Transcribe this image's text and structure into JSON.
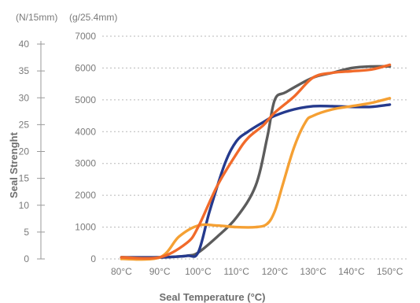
{
  "chart_data": {
    "type": "line",
    "xlabel": "Seal Temperature (°C)",
    "ylabel": "Seal Strenght",
    "left_axis": {
      "unit": "(N/15mm)",
      "ticks": [
        "0",
        "5",
        "10",
        "15",
        "20",
        "25",
        "30",
        "35",
        "40"
      ],
      "ylim": [
        0,
        40
      ]
    },
    "right_axis": {
      "unit": "(g/25.4mm)",
      "ticks": [
        "0",
        "1000",
        "2000",
        "3000",
        "4000",
        "5000",
        "6000",
        "7000"
      ],
      "ylim": [
        0,
        7000
      ]
    },
    "x_ticks": [
      {
        "label": "80°C",
        "value": 80
      },
      {
        "label": "90°C",
        "value": 90
      },
      {
        "label": "100°C",
        "value": 100
      },
      {
        "label": "110°C",
        "value": 110
      },
      {
        "label": "120°C",
        "value": 120
      },
      {
        "label": "130°C",
        "value": 130
      },
      {
        "label": "140°C",
        "value": 140
      },
      {
        "label": "150°C",
        "value": 150
      }
    ],
    "xlim": [
      75,
      155
    ],
    "grid": true,
    "legend": "none",
    "series": [
      {
        "color": "#5c5c5c",
        "x": [
          80,
          90,
          97,
          100,
          105,
          110,
          115,
          118,
          120,
          123,
          130,
          135,
          140,
          145,
          150
        ],
        "y": [
          50,
          50,
          100,
          200,
          700,
          1300,
          2300,
          3800,
          5000,
          5250,
          5700,
          5850,
          6000,
          6050,
          6050
        ]
      },
      {
        "color": "#253a8d",
        "x": [
          80,
          90,
          97,
          100,
          103,
          107,
          110,
          113,
          117,
          120,
          125,
          130,
          135,
          140,
          145,
          150
        ],
        "y": [
          50,
          50,
          100,
          200,
          1500,
          3000,
          3700,
          4000,
          4300,
          4500,
          4700,
          4800,
          4800,
          4780,
          4780,
          4850
        ]
      },
      {
        "color": "#f5a033",
        "x": [
          80,
          90,
          95,
          100,
          105,
          110,
          115,
          118,
          120,
          122,
          125,
          128,
          130,
          135,
          140,
          145,
          150
        ],
        "y": [
          0,
          50,
          700,
          1050,
          1050,
          1000,
          1000,
          1100,
          1500,
          2300,
          3500,
          4300,
          4500,
          4700,
          4800,
          4900,
          5050
        ]
      },
      {
        "color": "#f16a2a",
        "x": [
          80,
          90,
          97,
          100,
          105,
          110,
          113,
          117,
          120,
          125,
          130,
          135,
          140,
          145,
          150
        ],
        "y": [
          50,
          50,
          500,
          1000,
          2300,
          3300,
          3800,
          4200,
          4600,
          5100,
          5700,
          5850,
          5900,
          5950,
          6100
        ]
      }
    ]
  }
}
